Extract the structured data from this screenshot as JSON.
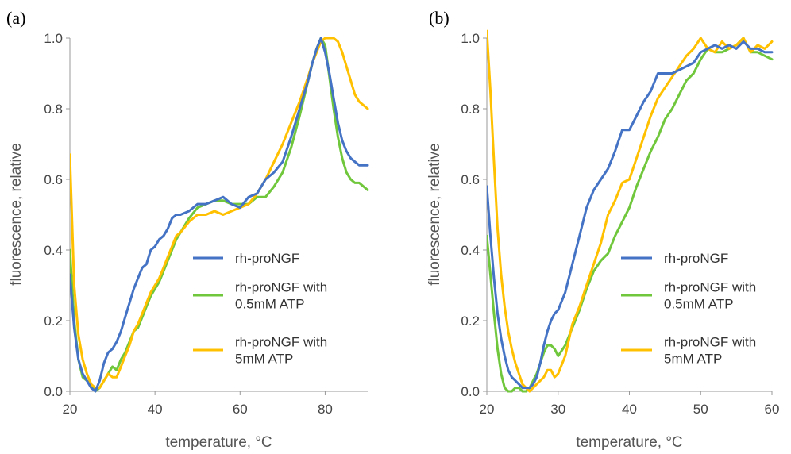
{
  "chart_data": [
    {
      "type": "line",
      "panel_label": "(a)",
      "xlabel": "temperature, °C",
      "ylabel": "fluorescence, relative",
      "xlim": [
        20,
        90
      ],
      "ylim": [
        0,
        1.0
      ],
      "xticks": [
        20,
        40,
        60,
        80
      ],
      "xtick_labels": [
        "20",
        "40",
        "60",
        "80"
      ],
      "yticks": [
        0,
        0.2,
        0.4,
        0.6,
        0.8,
        1.0
      ],
      "ytick_labels": [
        "0.0",
        "0.2",
        "0.4",
        "0.6",
        "0.8",
        "1.0"
      ],
      "grid": false,
      "legend_position": "right",
      "series": [
        {
          "name": "rh-proNGF",
          "legend_lines": [
            "rh-proNGF"
          ],
          "color": "#4472C4",
          "x": [
            20,
            21,
            22,
            23,
            24,
            25,
            26,
            27,
            28,
            29,
            30,
            31,
            32,
            33,
            34,
            35,
            36,
            37,
            38,
            39,
            40,
            41,
            42,
            43,
            44,
            45,
            46,
            48,
            50,
            52,
            54,
            56,
            58,
            60,
            62,
            64,
            66,
            68,
            70,
            72,
            74,
            76,
            77,
            78,
            79,
            80,
            81,
            82,
            83,
            84,
            85,
            86,
            87,
            88,
            89,
            90
          ],
          "y": [
            0.33,
            0.18,
            0.09,
            0.05,
            0.03,
            0.01,
            0.0,
            0.03,
            0.08,
            0.11,
            0.12,
            0.14,
            0.17,
            0.21,
            0.25,
            0.29,
            0.32,
            0.35,
            0.36,
            0.4,
            0.41,
            0.43,
            0.44,
            0.46,
            0.49,
            0.5,
            0.5,
            0.51,
            0.53,
            0.53,
            0.54,
            0.55,
            0.53,
            0.52,
            0.55,
            0.56,
            0.6,
            0.62,
            0.65,
            0.72,
            0.8,
            0.88,
            0.93,
            0.97,
            1.0,
            0.96,
            0.9,
            0.83,
            0.76,
            0.71,
            0.68,
            0.66,
            0.65,
            0.64,
            0.64,
            0.64
          ]
        },
        {
          "name": "rh-proNGF with 0.5mM ATP",
          "legend_lines": [
            "rh-proNGF with",
            "0.5mM ATP"
          ],
          "color": "#70C73C",
          "x": [
            20,
            21,
            22,
            23,
            24,
            25,
            26,
            27,
            28,
            29,
            30,
            31,
            32,
            33,
            34,
            35,
            36,
            37,
            38,
            39,
            40,
            41,
            42,
            43,
            44,
            45,
            46,
            48,
            50,
            52,
            54,
            56,
            58,
            60,
            62,
            64,
            66,
            68,
            70,
            72,
            74,
            76,
            77,
            78,
            79,
            80,
            81,
            82,
            83,
            84,
            85,
            86,
            87,
            88,
            89,
            90
          ],
          "y": [
            0.4,
            0.2,
            0.09,
            0.04,
            0.03,
            0.02,
            0.0,
            0.01,
            0.03,
            0.05,
            0.07,
            0.06,
            0.09,
            0.11,
            0.14,
            0.17,
            0.18,
            0.21,
            0.24,
            0.27,
            0.29,
            0.31,
            0.34,
            0.37,
            0.4,
            0.43,
            0.45,
            0.49,
            0.52,
            0.53,
            0.54,
            0.54,
            0.53,
            0.53,
            0.53,
            0.55,
            0.55,
            0.58,
            0.62,
            0.69,
            0.78,
            0.88,
            0.93,
            0.97,
            1.0,
            0.98,
            0.89,
            0.8,
            0.72,
            0.66,
            0.62,
            0.6,
            0.59,
            0.59,
            0.58,
            0.57
          ]
        },
        {
          "name": "rh-proNGF with 5mM ATP",
          "legend_lines": [
            "rh-proNGF with",
            "5mM ATP"
          ],
          "color": "#FFC000",
          "x": [
            20,
            21,
            22,
            23,
            24,
            25,
            26,
            27,
            28,
            29,
            30,
            31,
            32,
            33,
            34,
            35,
            36,
            37,
            38,
            39,
            40,
            41,
            42,
            43,
            44,
            45,
            46,
            48,
            50,
            52,
            54,
            56,
            58,
            60,
            62,
            64,
            66,
            68,
            70,
            72,
            74,
            76,
            77,
            78,
            79,
            80,
            81,
            82,
            83,
            84,
            85,
            86,
            87,
            88,
            89,
            90
          ],
          "y": [
            0.67,
            0.3,
            0.16,
            0.09,
            0.05,
            0.02,
            0.01,
            0.01,
            0.03,
            0.05,
            0.04,
            0.04,
            0.07,
            0.1,
            0.13,
            0.17,
            0.19,
            0.22,
            0.25,
            0.28,
            0.3,
            0.32,
            0.35,
            0.38,
            0.41,
            0.44,
            0.45,
            0.48,
            0.5,
            0.5,
            0.51,
            0.5,
            0.51,
            0.52,
            0.53,
            0.56,
            0.6,
            0.65,
            0.7,
            0.76,
            0.82,
            0.89,
            0.93,
            0.96,
            0.99,
            1.0,
            1.0,
            1.0,
            0.99,
            0.96,
            0.92,
            0.88,
            0.84,
            0.82,
            0.81,
            0.8
          ]
        }
      ]
    },
    {
      "type": "line",
      "panel_label": "(b)",
      "xlabel": "temperature, °C",
      "ylabel": "fluorescence, relative",
      "xlim": [
        20,
        60
      ],
      "ylim": [
        0,
        1.0
      ],
      "xticks": [
        20,
        30,
        40,
        50,
        60
      ],
      "xtick_labels": [
        "20",
        "30",
        "40",
        "50",
        "60"
      ],
      "yticks": [
        0,
        0.2,
        0.4,
        0.6,
        0.8,
        1.0
      ],
      "ytick_labels": [
        "0.0",
        "0.2",
        "0.4",
        "0.6",
        "0.8",
        "1.0"
      ],
      "grid": false,
      "legend_position": "right",
      "series": [
        {
          "name": "rh-proNGF",
          "legend_lines": [
            "rh-proNGF"
          ],
          "color": "#4472C4",
          "x": [
            20,
            20.5,
            21,
            21.5,
            22,
            22.5,
            23,
            23.5,
            24,
            24.5,
            25,
            25.5,
            26,
            26.5,
            27,
            27.5,
            28,
            28.5,
            29,
            29.5,
            30,
            31,
            32,
            33,
            34,
            35,
            36,
            37,
            38,
            39,
            40,
            41,
            42,
            43,
            44,
            45,
            46,
            47,
            48,
            49,
            50,
            51,
            52,
            53,
            54,
            55,
            56,
            57,
            58,
            59,
            60
          ],
          "y": [
            0.58,
            0.44,
            0.32,
            0.22,
            0.15,
            0.1,
            0.06,
            0.04,
            0.03,
            0.02,
            0.01,
            0.01,
            0.01,
            0.02,
            0.04,
            0.08,
            0.13,
            0.17,
            0.2,
            0.22,
            0.23,
            0.28,
            0.36,
            0.44,
            0.52,
            0.57,
            0.6,
            0.63,
            0.68,
            0.74,
            0.74,
            0.78,
            0.82,
            0.85,
            0.9,
            0.9,
            0.9,
            0.91,
            0.92,
            0.93,
            0.96,
            0.97,
            0.98,
            0.97,
            0.98,
            0.97,
            0.99,
            0.97,
            0.97,
            0.96,
            0.96
          ]
        },
        {
          "name": "rh-proNGF with 0.5mM ATP",
          "legend_lines": [
            "rh-proNGF with",
            "0.5mM ATP"
          ],
          "color": "#70C73C",
          "x": [
            20,
            20.5,
            21,
            21.5,
            22,
            22.5,
            23,
            23.5,
            24,
            24.5,
            25,
            25.5,
            26,
            26.5,
            27,
            27.5,
            28,
            28.5,
            29,
            29.5,
            30,
            31,
            32,
            33,
            34,
            35,
            36,
            37,
            38,
            39,
            40,
            41,
            42,
            43,
            44,
            45,
            46,
            47,
            48,
            49,
            50,
            51,
            52,
            53,
            54,
            55,
            56,
            57,
            58,
            59,
            60
          ],
          "y": [
            0.44,
            0.33,
            0.22,
            0.12,
            0.05,
            0.01,
            0.0,
            0.0,
            0.01,
            0.01,
            0.0,
            0.0,
            0.01,
            0.03,
            0.05,
            0.08,
            0.11,
            0.13,
            0.13,
            0.12,
            0.1,
            0.13,
            0.18,
            0.23,
            0.29,
            0.34,
            0.37,
            0.39,
            0.44,
            0.48,
            0.52,
            0.58,
            0.63,
            0.68,
            0.72,
            0.77,
            0.8,
            0.84,
            0.88,
            0.9,
            0.94,
            0.97,
            0.96,
            0.96,
            0.97,
            0.98,
            1.0,
            0.96,
            0.96,
            0.95,
            0.94
          ]
        },
        {
          "name": "rh-proNGF with 5mM ATP",
          "legend_lines": [
            "rh-proNGF with",
            "5mM ATP"
          ],
          "color": "#FFC000",
          "x": [
            20,
            20.5,
            21,
            21.5,
            22,
            22.5,
            23,
            23.5,
            24,
            24.5,
            25,
            25.5,
            26,
            26.5,
            27,
            27.5,
            28,
            28.5,
            29,
            29.5,
            30,
            31,
            32,
            33,
            34,
            35,
            36,
            37,
            38,
            39,
            40,
            41,
            42,
            43,
            44,
            45,
            46,
            47,
            48,
            49,
            50,
            51,
            52,
            53,
            54,
            55,
            56,
            57,
            58,
            59,
            60
          ],
          "y": [
            1.02,
            0.85,
            0.65,
            0.46,
            0.33,
            0.24,
            0.17,
            0.12,
            0.08,
            0.05,
            0.02,
            0.01,
            0.0,
            0.01,
            0.02,
            0.03,
            0.04,
            0.06,
            0.06,
            0.04,
            0.05,
            0.1,
            0.19,
            0.24,
            0.3,
            0.36,
            0.42,
            0.5,
            0.54,
            0.59,
            0.6,
            0.66,
            0.72,
            0.78,
            0.83,
            0.86,
            0.89,
            0.92,
            0.95,
            0.97,
            1.0,
            0.97,
            0.96,
            0.99,
            0.97,
            0.98,
            1.0,
            0.96,
            0.98,
            0.97,
            0.99
          ]
        }
      ]
    }
  ]
}
